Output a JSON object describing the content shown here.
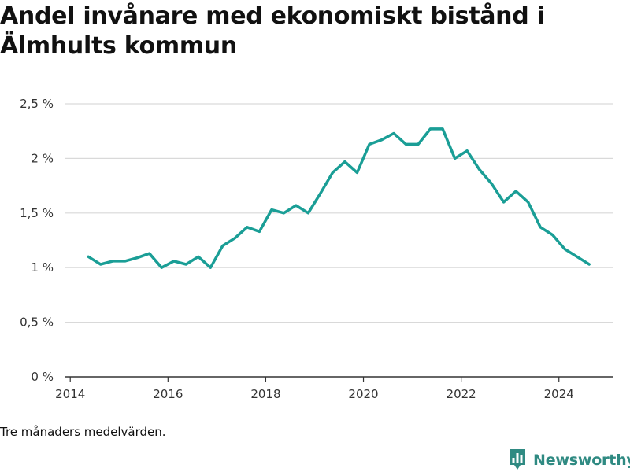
{
  "chart_data": {
    "type": "line",
    "title": "Andel invånare med ekonomiskt bistånd i Älmhults kommun",
    "note": "Tre månaders medelvärden.",
    "color": "#1a9e96",
    "xlim": [
      2013.9,
      2025.1
    ],
    "ylim": [
      0,
      2.5
    ],
    "xticks": [
      2014,
      2016,
      2018,
      2020,
      2022,
      2024
    ],
    "xtick_labels": [
      "2014",
      "2016",
      "2018",
      "2020",
      "2022",
      "2024"
    ],
    "yticks": [
      0,
      0.5,
      1,
      1.5,
      2,
      2.5
    ],
    "ytick_labels": [
      "0 %",
      "0,5 %",
      "1 %",
      "1,5 %",
      "2 %",
      "2,5 %"
    ],
    "grid": true,
    "series": [
      {
        "x": [
          2014.37,
          2014.62,
          2014.87,
          2015.12,
          2015.37,
          2015.62,
          2015.87,
          2016.12,
          2016.37,
          2016.62,
          2016.87,
          2017.12,
          2017.37,
          2017.62,
          2017.87,
          2018.12,
          2018.37,
          2018.62,
          2018.87,
          2019.12,
          2019.37,
          2019.62,
          2019.87,
          2020.12,
          2020.37,
          2020.62,
          2020.87,
          2021.12,
          2021.37,
          2021.62,
          2021.87,
          2022.12,
          2022.37,
          2022.62,
          2022.87,
          2023.12,
          2023.37,
          2023.62,
          2023.87,
          2024.12,
          2024.37,
          2024.62
        ],
        "y": [
          1.1,
          1.03,
          1.06,
          1.06,
          1.09,
          1.13,
          1.0,
          1.06,
          1.03,
          1.1,
          1.0,
          1.2,
          1.27,
          1.37,
          1.33,
          1.53,
          1.5,
          1.57,
          1.5,
          1.68,
          1.87,
          1.97,
          1.87,
          2.13,
          2.17,
          2.23,
          2.13,
          2.13,
          2.27,
          2.27,
          2.0,
          2.07,
          1.9,
          1.77,
          1.6,
          1.7,
          1.6,
          1.37,
          1.3,
          1.17,
          1.1,
          1.03
        ]
      }
    ]
  },
  "brand": {
    "name": "Newsworthy",
    "logo_icon": "bar-chart-pin-icon"
  }
}
